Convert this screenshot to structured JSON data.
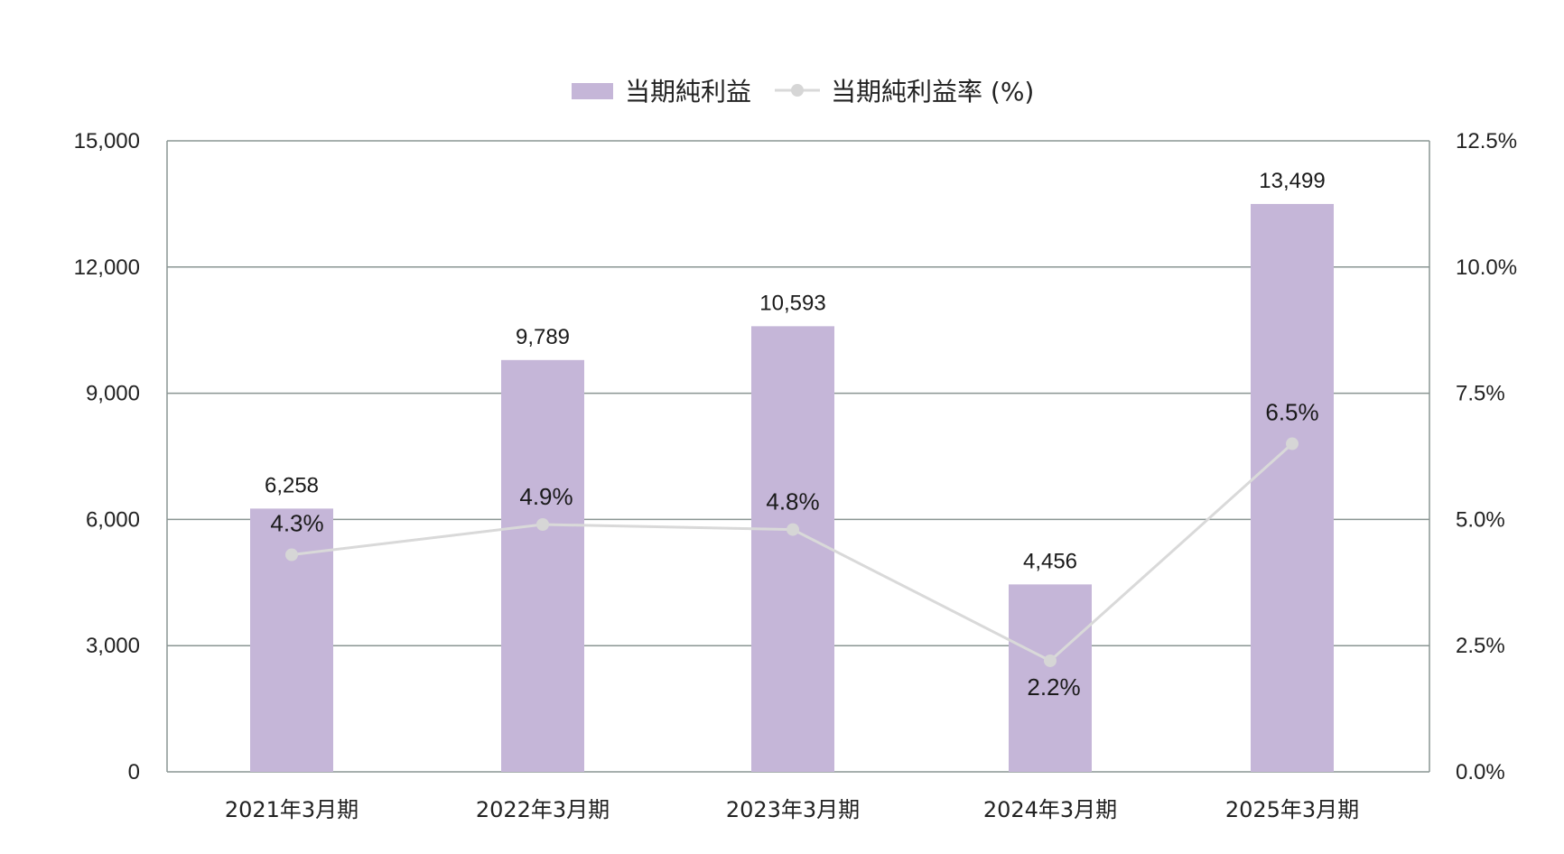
{
  "chart_data": {
    "type": "bar",
    "categories": [
      "2021年3月期",
      "2022年3月期",
      "2023年3月期",
      "2024年3月期",
      "2025年3月期"
    ],
    "series": [
      {
        "name": "当期純利益",
        "kind": "bar",
        "axis": "left",
        "values": [
          6258,
          9789,
          10593,
          4456,
          13499
        ],
        "labels": [
          "6,258",
          "9,789",
          "10,593",
          "4,456",
          "13,499"
        ]
      },
      {
        "name": "当期純利益率 (%)",
        "kind": "line",
        "axis": "right",
        "values": [
          4.3,
          4.9,
          4.8,
          2.2,
          6.5
        ],
        "labels": [
          "4.3%",
          "4.9%",
          "4.8%",
          "2.2%",
          "6.5%"
        ]
      }
    ],
    "y_left": {
      "ylim": [
        0,
        15000
      ],
      "ticks": [
        0,
        3000,
        6000,
        9000,
        12000,
        15000
      ],
      "tick_labels": [
        "0",
        "3,000",
        "6,000",
        "9,000",
        "12,000",
        "15,000"
      ]
    },
    "y_right": {
      "ylim": [
        0,
        12.5
      ],
      "ticks": [
        0,
        2.5,
        5,
        7.5,
        10,
        12.5
      ],
      "tick_labels": [
        "0.0%",
        "2.5%",
        "5.0%",
        "7.5%",
        "10.0%",
        "12.5%"
      ]
    },
    "legend": {
      "position": "top-center",
      "items": [
        "当期純利益",
        "当期純利益率 (%)"
      ]
    },
    "grid": true,
    "colors": {
      "bar": "#c5b6d8",
      "line": "#d9d9d9",
      "marker": "#d6d6d6",
      "grid": "#8a9593",
      "axis": "#8a9593"
    }
  }
}
